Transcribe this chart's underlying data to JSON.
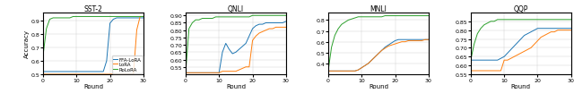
{
  "titles": [
    "SST-2",
    "QNLI",
    "MNLI",
    "QQP"
  ],
  "xlim": [
    0,
    30
  ],
  "xticks": [
    0,
    10,
    20,
    30
  ],
  "xlabel": "Round",
  "ylabel": "Accuracy",
  "colors": {
    "FFA-LoRA": "#1f77b4",
    "LoRA": "#ff7f0e",
    "RoLoRA": "#2ca02c"
  },
  "legend_labels": [
    "FFA-LoRA",
    "LoRA",
    "RoLoRA"
  ],
  "sst2": {
    "ylim": [
      0.5,
      0.96
    ],
    "yticks": [
      0.5,
      0.6,
      0.7,
      0.8,
      0.9
    ],
    "FFA-LoRA": {
      "x": [
        0,
        1,
        2,
        3,
        4,
        5,
        6,
        7,
        8,
        9,
        10,
        11,
        12,
        13,
        14,
        15,
        16,
        17,
        18,
        19,
        20,
        21,
        22,
        23,
        24,
        25,
        26,
        27,
        28,
        29,
        30
      ],
      "y": [
        0.52,
        0.52,
        0.52,
        0.52,
        0.52,
        0.52,
        0.52,
        0.52,
        0.52,
        0.52,
        0.52,
        0.52,
        0.52,
        0.52,
        0.52,
        0.52,
        0.52,
        0.52,
        0.52,
        0.6,
        0.88,
        0.91,
        0.92,
        0.92,
        0.92,
        0.92,
        0.92,
        0.92,
        0.92,
        0.92,
        0.92
      ]
    },
    "LoRA": {
      "x": [
        0,
        1,
        2,
        3,
        4,
        5,
        6,
        7,
        8,
        9,
        10,
        11,
        12,
        13,
        14,
        15,
        16,
        17,
        18,
        19,
        20,
        21,
        22,
        23,
        24,
        25,
        26,
        27,
        28,
        29,
        30
      ],
      "y": [
        0.5,
        0.5,
        0.5,
        0.5,
        0.5,
        0.5,
        0.5,
        0.5,
        0.5,
        0.5,
        0.5,
        0.5,
        0.5,
        0.5,
        0.5,
        0.5,
        0.5,
        0.5,
        0.5,
        0.5,
        0.5,
        0.5,
        0.5,
        0.5,
        0.5,
        0.5,
        0.5,
        0.5,
        0.83,
        0.93,
        0.93
      ]
    },
    "RoLoRA": {
      "x": [
        0,
        1,
        2,
        3,
        4,
        5,
        6,
        7,
        8,
        9,
        10,
        11,
        12,
        13,
        14,
        15,
        16,
        17,
        18,
        19,
        20,
        21,
        22,
        23,
        24,
        25,
        26,
        27,
        28,
        29,
        30
      ],
      "y": [
        0.64,
        0.84,
        0.91,
        0.92,
        0.92,
        0.92,
        0.92,
        0.92,
        0.92,
        0.93,
        0.93,
        0.93,
        0.93,
        0.93,
        0.93,
        0.93,
        0.93,
        0.93,
        0.93,
        0.93,
        0.93,
        0.93,
        0.93,
        0.93,
        0.93,
        0.93,
        0.93,
        0.93,
        0.93,
        0.93,
        0.93
      ]
    }
  },
  "qnli": {
    "ylim": [
      0.5,
      0.92
    ],
    "yticks": [
      0.55,
      0.6,
      0.65,
      0.7,
      0.75,
      0.8,
      0.85,
      0.9
    ],
    "FFA-LoRA": {
      "x": [
        0,
        1,
        2,
        3,
        4,
        5,
        6,
        7,
        8,
        9,
        10,
        11,
        12,
        13,
        14,
        15,
        16,
        17,
        18,
        19,
        20,
        21,
        22,
        23,
        24,
        25,
        26,
        27,
        28,
        29,
        30
      ],
      "y": [
        0.51,
        0.51,
        0.51,
        0.51,
        0.51,
        0.51,
        0.51,
        0.51,
        0.51,
        0.51,
        0.51,
        0.65,
        0.71,
        0.67,
        0.64,
        0.65,
        0.67,
        0.69,
        0.71,
        0.76,
        0.81,
        0.83,
        0.84,
        0.84,
        0.85,
        0.85,
        0.85,
        0.85,
        0.85,
        0.85,
        0.86
      ]
    },
    "LoRA": {
      "x": [
        0,
        1,
        2,
        3,
        4,
        5,
        6,
        7,
        8,
        9,
        10,
        11,
        12,
        13,
        14,
        15,
        16,
        17,
        18,
        19,
        20,
        21,
        22,
        23,
        24,
        25,
        26,
        27,
        28,
        29,
        30
      ],
      "y": [
        0.51,
        0.51,
        0.51,
        0.51,
        0.51,
        0.51,
        0.51,
        0.51,
        0.51,
        0.51,
        0.51,
        0.52,
        0.52,
        0.52,
        0.52,
        0.52,
        0.53,
        0.54,
        0.55,
        0.55,
        0.73,
        0.76,
        0.78,
        0.79,
        0.8,
        0.81,
        0.81,
        0.82,
        0.82,
        0.82,
        0.82
      ]
    },
    "RoLoRA": {
      "x": [
        0,
        1,
        2,
        3,
        4,
        5,
        6,
        7,
        8,
        9,
        10,
        11,
        12,
        13,
        14,
        15,
        16,
        17,
        18,
        19,
        20,
        21,
        22,
        23,
        24,
        25,
        26,
        27,
        28,
        29,
        30
      ],
      "y": [
        0.51,
        0.81,
        0.85,
        0.87,
        0.87,
        0.88,
        0.88,
        0.88,
        0.88,
        0.89,
        0.89,
        0.89,
        0.89,
        0.89,
        0.89,
        0.89,
        0.89,
        0.89,
        0.89,
        0.89,
        0.9,
        0.9,
        0.9,
        0.9,
        0.9,
        0.9,
        0.9,
        0.9,
        0.9,
        0.9,
        0.9
      ]
    }
  },
  "mnli": {
    "ylim": [
      0.3,
      0.87
    ],
    "yticks": [
      0.4,
      0.5,
      0.6,
      0.7,
      0.8
    ],
    "FFA-LoRA": {
      "x": [
        0,
        1,
        2,
        3,
        4,
        5,
        6,
        7,
        8,
        9,
        10,
        11,
        12,
        13,
        14,
        15,
        16,
        17,
        18,
        19,
        20,
        21,
        22,
        23,
        24,
        25,
        26,
        27,
        28,
        29,
        30
      ],
      "y": [
        0.33,
        0.33,
        0.33,
        0.33,
        0.33,
        0.33,
        0.33,
        0.33,
        0.33,
        0.34,
        0.36,
        0.38,
        0.4,
        0.43,
        0.46,
        0.49,
        0.52,
        0.55,
        0.57,
        0.59,
        0.61,
        0.62,
        0.62,
        0.62,
        0.62,
        0.62,
        0.62,
        0.62,
        0.62,
        0.62,
        0.62
      ]
    },
    "LoRA": {
      "x": [
        0,
        1,
        2,
        3,
        4,
        5,
        6,
        7,
        8,
        9,
        10,
        11,
        12,
        13,
        14,
        15,
        16,
        17,
        18,
        19,
        20,
        21,
        22,
        23,
        24,
        25,
        26,
        27,
        28,
        29,
        30
      ],
      "y": [
        0.33,
        0.33,
        0.33,
        0.33,
        0.33,
        0.33,
        0.33,
        0.33,
        0.33,
        0.34,
        0.36,
        0.38,
        0.4,
        0.43,
        0.46,
        0.49,
        0.52,
        0.54,
        0.56,
        0.57,
        0.58,
        0.59,
        0.6,
        0.6,
        0.61,
        0.61,
        0.61,
        0.61,
        0.61,
        0.62,
        0.62
      ]
    },
    "RoLoRA": {
      "x": [
        0,
        1,
        2,
        3,
        4,
        5,
        6,
        7,
        8,
        9,
        10,
        11,
        12,
        13,
        14,
        15,
        16,
        17,
        18,
        19,
        20,
        21,
        22,
        23,
        24,
        25,
        26,
        27,
        28,
        29,
        30
      ],
      "y": [
        0.33,
        0.55,
        0.66,
        0.72,
        0.76,
        0.78,
        0.8,
        0.81,
        0.82,
        0.83,
        0.83,
        0.83,
        0.83,
        0.83,
        0.83,
        0.83,
        0.83,
        0.84,
        0.84,
        0.84,
        0.84,
        0.84,
        0.84,
        0.84,
        0.84,
        0.84,
        0.84,
        0.84,
        0.84,
        0.84,
        0.84
      ]
    }
  },
  "qqp": {
    "ylim": [
      0.55,
      0.9
    ],
    "yticks": [
      0.55,
      0.6,
      0.65,
      0.7,
      0.75,
      0.8,
      0.85
    ],
    "FFA-LoRA": {
      "x": [
        0,
        1,
        2,
        3,
        4,
        5,
        6,
        7,
        8,
        9,
        10,
        11,
        12,
        13,
        14,
        15,
        16,
        17,
        18,
        19,
        20,
        21,
        22,
        23,
        24,
        25,
        26,
        27,
        28,
        29,
        30
      ],
      "y": [
        0.63,
        0.63,
        0.63,
        0.63,
        0.63,
        0.63,
        0.63,
        0.63,
        0.63,
        0.64,
        0.65,
        0.67,
        0.69,
        0.71,
        0.73,
        0.75,
        0.77,
        0.78,
        0.79,
        0.8,
        0.81,
        0.81,
        0.81,
        0.81,
        0.81,
        0.81,
        0.81,
        0.81,
        0.81,
        0.81,
        0.81
      ]
    },
    "LoRA": {
      "x": [
        0,
        1,
        2,
        3,
        4,
        5,
        6,
        7,
        8,
        9,
        10,
        11,
        12,
        13,
        14,
        15,
        16,
        17,
        18,
        19,
        20,
        21,
        22,
        23,
        24,
        25,
        26,
        27,
        28,
        29,
        30
      ],
      "y": [
        0.57,
        0.57,
        0.57,
        0.57,
        0.57,
        0.57,
        0.57,
        0.57,
        0.57,
        0.57,
        0.63,
        0.63,
        0.64,
        0.65,
        0.66,
        0.67,
        0.68,
        0.69,
        0.7,
        0.72,
        0.74,
        0.76,
        0.77,
        0.78,
        0.79,
        0.79,
        0.8,
        0.8,
        0.8,
        0.8,
        0.8
      ]
    },
    "RoLoRA": {
      "x": [
        0,
        1,
        2,
        3,
        4,
        5,
        6,
        7,
        8,
        9,
        10,
        11,
        12,
        13,
        14,
        15,
        16,
        17,
        18,
        19,
        20,
        21,
        22,
        23,
        24,
        25,
        26,
        27,
        28,
        29,
        30
      ],
      "y": [
        0.63,
        0.72,
        0.78,
        0.81,
        0.83,
        0.84,
        0.85,
        0.85,
        0.86,
        0.86,
        0.86,
        0.86,
        0.86,
        0.86,
        0.86,
        0.86,
        0.86,
        0.86,
        0.86,
        0.86,
        0.86,
        0.86,
        0.86,
        0.86,
        0.86,
        0.86,
        0.86,
        0.86,
        0.86,
        0.86,
        0.86
      ]
    }
  }
}
